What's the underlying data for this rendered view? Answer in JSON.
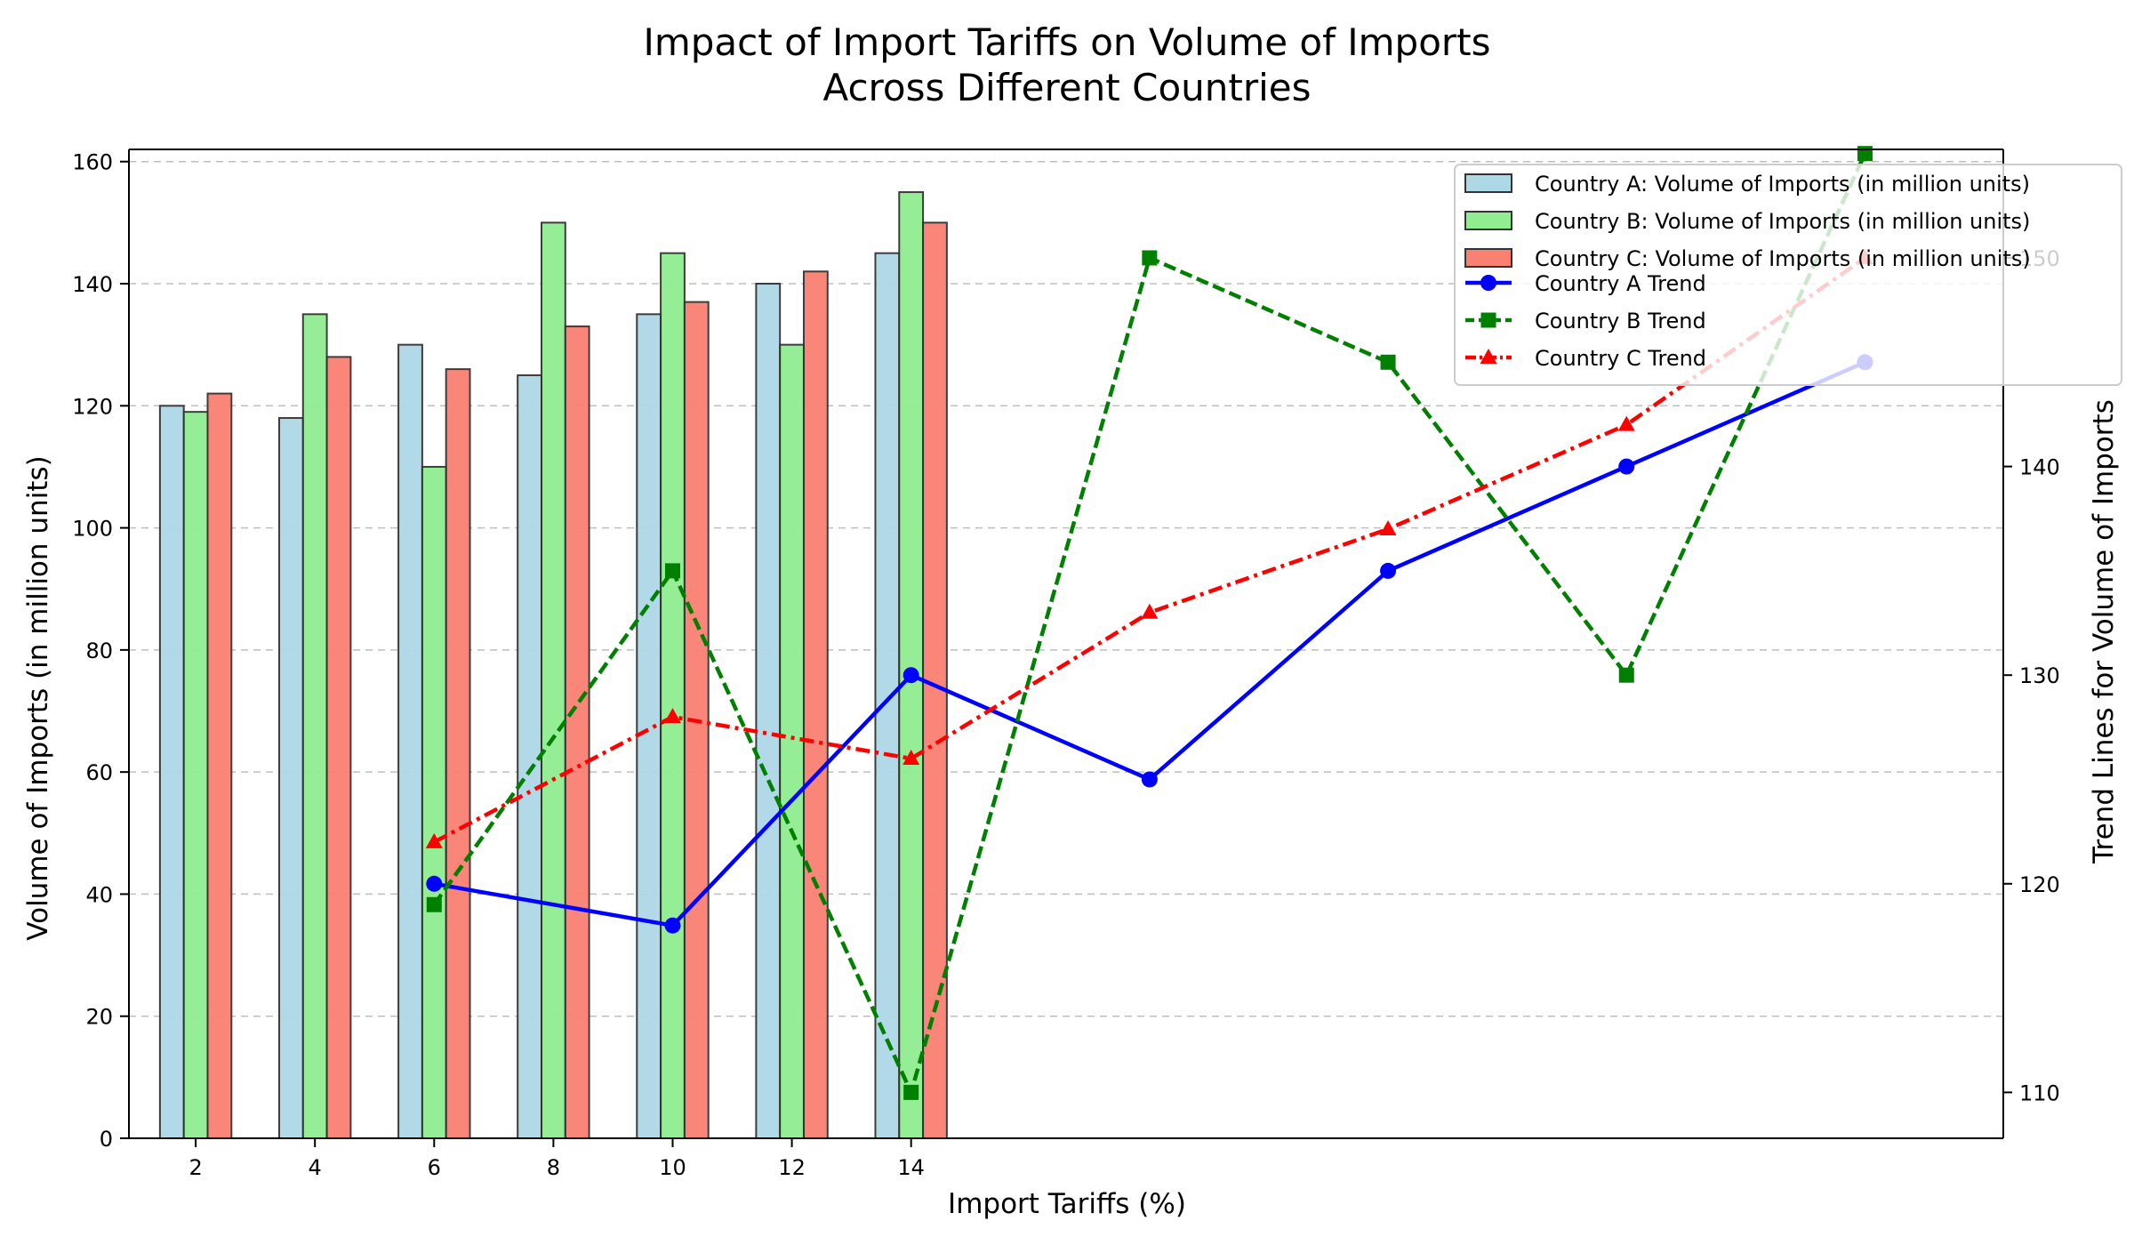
{
  "chart_data": {
    "type": "bar",
    "title_lines": [
      "Impact of Import Tariffs on Volume of Imports",
      "Across Different Countries"
    ],
    "xlabel": "Import Tariffs (%)",
    "ylabel": "Volume of Imports (in million units)",
    "y2label": "Trend Lines for Volume of Imports",
    "categories": [
      "2",
      "4",
      "6",
      "8",
      "10",
      "12",
      "14"
    ],
    "ylim": [
      0,
      162
    ],
    "yticks": [
      0,
      20,
      40,
      60,
      80,
      100,
      120,
      140,
      160
    ],
    "y2lim": [
      107.8,
      155.2
    ],
    "y2ticks": [
      110,
      120,
      130,
      140,
      150
    ],
    "grid": "horizontal dashed",
    "legend_position": "upper-right",
    "bar_series": [
      {
        "name": "Country A: Volume of Imports (in million units)",
        "color": "#add8e6",
        "values": [
          120,
          118,
          130,
          125,
          135,
          140,
          145
        ]
      },
      {
        "name": "Country B: Volume of Imports (in million units)",
        "color": "#90ee90",
        "values": [
          119,
          135,
          110,
          150,
          145,
          130,
          155
        ]
      },
      {
        "name": "Country C: Volume of Imports (in million units)",
        "color": "#fa8072",
        "values": [
          122,
          128,
          126,
          133,
          137,
          142,
          150
        ]
      }
    ],
    "line_series": [
      {
        "name": "Country A Trend",
        "color": "#0000ff",
        "style": "solid",
        "marker": "circle",
        "values": [
          120,
          118,
          130,
          125,
          135,
          140,
          145
        ]
      },
      {
        "name": "Country B Trend",
        "color": "#008000",
        "style": "dashed",
        "marker": "square",
        "values": [
          119,
          135,
          110,
          150,
          145,
          130,
          155
        ]
      },
      {
        "name": "Country C Trend",
        "color": "#ff0000",
        "style": "dashdot",
        "marker": "triangle",
        "values": [
          122,
          128,
          126,
          133,
          137,
          142,
          150
        ]
      }
    ],
    "line_x_positions": [
      6,
      10,
      14,
      18,
      22,
      26,
      30
    ]
  }
}
